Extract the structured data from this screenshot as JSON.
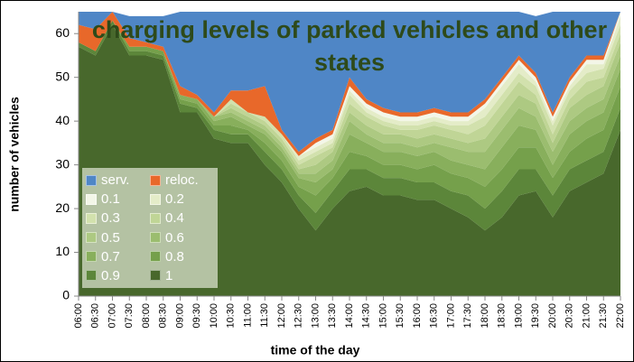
{
  "chart_data": {
    "type": "stacked_area",
    "title": "charging levels of parked vehicles and other states",
    "xlabel": "time of the day",
    "ylabel": "number of vehicles",
    "categories": [
      "06:00",
      "06:30",
      "07:00",
      "07:30",
      "08:00",
      "08:30",
      "09:00",
      "09:30",
      "10:00",
      "10:30",
      "11:00",
      "11:30",
      "12:00",
      "12:30",
      "13:00",
      "13:30",
      "14:00",
      "14:30",
      "15:00",
      "15:30",
      "16:00",
      "16:30",
      "17:00",
      "17:30",
      "18:00",
      "18:30",
      "19:00",
      "19:30",
      "20:00",
      "20:30",
      "21:00",
      "21:30",
      "22:00"
    ],
    "ylim": [
      0,
      65
    ],
    "yticks": [
      0,
      10,
      20,
      30,
      40,
      50,
      60
    ],
    "legend": "lower left",
    "series": [
      {
        "name": "serv.",
        "color": "#4f86c6",
        "values": [
          3,
          4,
          0,
          5,
          6,
          7,
          17,
          19,
          23,
          18,
          18,
          17,
          27,
          32,
          29,
          27,
          15,
          20,
          22,
          23,
          23,
          22,
          23,
          23,
          20,
          15,
          10,
          13,
          23,
          15,
          10,
          10,
          0
        ]
      },
      {
        "name": "reloc.",
        "color": "#e8682a",
        "values": [
          4,
          5,
          2,
          2,
          1,
          1,
          2,
          1,
          1,
          2,
          5,
          7,
          1,
          1,
          1,
          1,
          2,
          1,
          1,
          1,
          1,
          1,
          1,
          1,
          1,
          1,
          1,
          1,
          1,
          1,
          1,
          1,
          0
        ]
      },
      {
        "name": "0.1",
        "color": "#f3f6e8",
        "values": [
          0,
          0,
          0,
          0,
          0,
          0,
          0,
          0,
          0,
          0,
          0,
          0,
          0,
          0,
          1,
          1,
          1,
          1,
          1,
          1,
          1,
          1,
          1,
          1,
          1,
          1,
          1,
          1,
          1,
          1,
          1,
          1,
          1
        ]
      },
      {
        "name": "0.2",
        "color": "#e4ecc8",
        "values": [
          0,
          0,
          0,
          0,
          0,
          0,
          0,
          0,
          0,
          0,
          0,
          0,
          0,
          1,
          1,
          1,
          1,
          1,
          1,
          1,
          1,
          1,
          1,
          1,
          2,
          2,
          2,
          1,
          1,
          1,
          2,
          1,
          2
        ]
      },
      {
        "name": "0.3",
        "color": "#d2e1ad",
        "values": [
          0,
          0,
          0,
          0,
          0,
          0,
          0,
          0,
          0,
          1,
          0,
          1,
          1,
          1,
          1,
          1,
          2,
          1,
          1,
          1,
          1,
          1,
          1,
          2,
          2,
          2,
          2,
          2,
          2,
          2,
          2,
          2,
          2
        ]
      },
      {
        "name": "0.4",
        "color": "#c0d596",
        "values": [
          0,
          0,
          0,
          0,
          0,
          0,
          0,
          0,
          0,
          1,
          1,
          1,
          1,
          1,
          2,
          1,
          2,
          2,
          2,
          1,
          2,
          2,
          2,
          2,
          3,
          3,
          3,
          2,
          2,
          2,
          3,
          2,
          2
        ]
      },
      {
        "name": "0.5",
        "color": "#adc982",
        "values": [
          0,
          0,
          0,
          0,
          0,
          0,
          0,
          0,
          0,
          1,
          1,
          1,
          1,
          1,
          2,
          2,
          2,
          2,
          2,
          2,
          2,
          2,
          2,
          2,
          3,
          3,
          3,
          3,
          2,
          3,
          3,
          3,
          3
        ]
      },
      {
        "name": "0.6",
        "color": "#9bbd6f",
        "values": [
          0,
          0,
          0,
          0,
          0,
          0,
          0,
          0,
          1,
          1,
          1,
          1,
          1,
          1,
          2,
          2,
          3,
          2,
          2,
          2,
          2,
          2,
          3,
          3,
          4,
          4,
          4,
          3,
          3,
          3,
          3,
          3,
          3
        ]
      },
      {
        "name": "0.7",
        "color": "#88af5c",
        "values": [
          0,
          0,
          0,
          0,
          0,
          0,
          1,
          1,
          1,
          2,
          1,
          2,
          2,
          2,
          3,
          2,
          4,
          3,
          3,
          3,
          3,
          3,
          3,
          3,
          4,
          5,
          5,
          4,
          3,
          4,
          4,
          4,
          4
        ]
      },
      {
        "name": "0.8",
        "color": "#75a04b",
        "values": [
          0,
          0,
          0,
          1,
          1,
          1,
          1,
          1,
          1,
          2,
          1,
          2,
          2,
          2,
          4,
          3,
          4,
          3,
          3,
          3,
          3,
          4,
          4,
          4,
          5,
          5,
          5,
          5,
          4,
          4,
          5,
          5,
          5
        ]
      },
      {
        "name": "0.9",
        "color": "#5c863a",
        "values": [
          1,
          1,
          1,
          1,
          1,
          1,
          2,
          1,
          2,
          2,
          2,
          3,
          3,
          3,
          4,
          4,
          5,
          4,
          4,
          4,
          4,
          4,
          4,
          5,
          5,
          6,
          6,
          5,
          5,
          5,
          5,
          5,
          5
        ]
      },
      {
        "name": "1",
        "color": "#48682c",
        "values": [
          57,
          55,
          62,
          55,
          55,
          54,
          42,
          42,
          36,
          35,
          35,
          30,
          26,
          20,
          15,
          20,
          24,
          25,
          23,
          23,
          22,
          22,
          20,
          18,
          15,
          18,
          23,
          24,
          18,
          24,
          26,
          28,
          38
        ]
      }
    ]
  }
}
